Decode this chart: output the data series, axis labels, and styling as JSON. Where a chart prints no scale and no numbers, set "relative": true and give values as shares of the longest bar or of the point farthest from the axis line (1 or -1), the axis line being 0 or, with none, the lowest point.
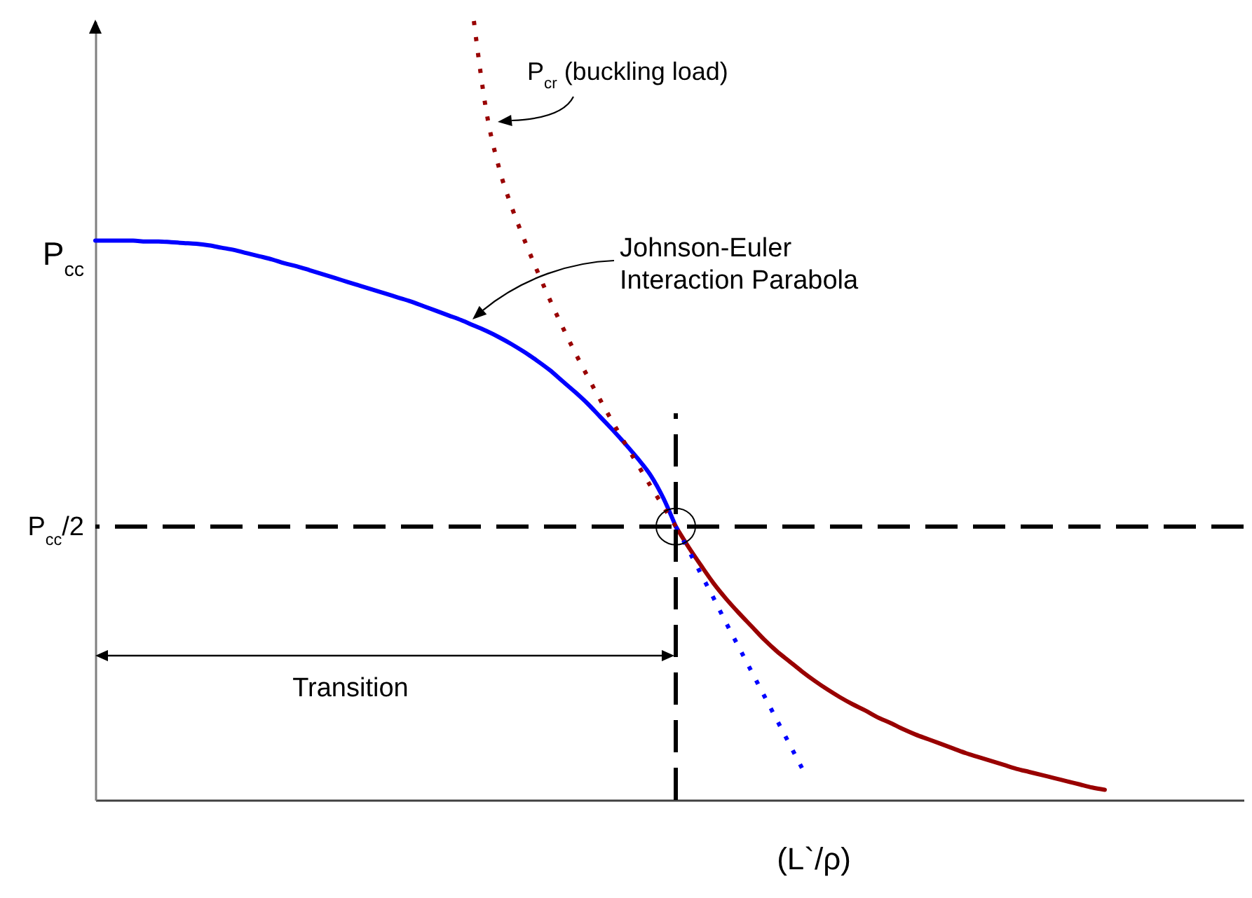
{
  "chart_data": {
    "type": "line",
    "relative": true,
    "xlabel": "(L`/ρ)",
    "categories": [
      null,
      null,
      null,
      null,
      null,
      null,
      null,
      null,
      null,
      null,
      null,
      null,
      null,
      null,
      null,
      null,
      null,
      null,
      null,
      null,
      null,
      null,
      null,
      null,
      null,
      null,
      null,
      null,
      null,
      null,
      null,
      null,
      null,
      null,
      null,
      null,
      null,
      null,
      null,
      null,
      null,
      null,
      null,
      null,
      null,
      null,
      null,
      null,
      null,
      null,
      null,
      null,
      null,
      null,
      null,
      null,
      null,
      null,
      null,
      null,
      null,
      null,
      null,
      null,
      null,
      null,
      null,
      null,
      null,
      null,
      null,
      null,
      null,
      null,
      null,
      null,
      null,
      null,
      null,
      null,
      null,
      null,
      null,
      null,
      null,
      null,
      null,
      null,
      null,
      null,
      null,
      null
    ],
    "series": [
      {
        "color": "#0000ff",
        "line_style": "solid",
        "values": [
          0.718,
          0.718,
          0.718,
          0.718,
          0.717,
          0.717,
          0.716,
          0.715,
          0.714,
          0.712,
          0.709,
          0.706,
          0.702,
          0.698,
          0.694,
          0.689,
          0.685,
          0.68,
          0.675,
          0.67,
          0.665,
          0.66,
          0.655,
          0.65,
          0.645,
          0.64,
          0.634,
          0.628,
          0.622,
          0.616,
          0.609,
          0.602,
          0.594,
          0.585,
          0.575,
          0.564,
          0.552,
          0.538,
          0.524,
          0.509,
          0.492,
          0.475,
          0.457,
          0.438,
          0.417,
          0.388,
          0.351,
          null,
          null,
          null,
          null,
          null,
          null,
          null,
          null,
          null,
          null,
          null,
          null,
          null,
          null,
          null,
          null,
          null,
          null,
          null,
          null,
          null,
          null,
          null,
          null,
          null,
          null,
          null,
          null,
          null,
          null,
          null,
          null,
          null,
          null,
          null,
          null,
          null,
          null,
          null,
          null,
          null,
          null,
          null,
          null,
          null
        ]
      },
      {
        "color": "#990000",
        "line_style": "dotted",
        "values": [
          null,
          null,
          null,
          null,
          null,
          null,
          null,
          null,
          null,
          null,
          null,
          null,
          null,
          null,
          null,
          null,
          null,
          null,
          null,
          null,
          null,
          null,
          null,
          null,
          null,
          null,
          null,
          null,
          null,
          null,
          1,
          0.883,
          0.811,
          0.761,
          0.719,
          0.68,
          0.643,
          0.608,
          0.575,
          0.544,
          0.514,
          0.485,
          0.457,
          0.43,
          0.403,
          0.377,
          0.351,
          null,
          null,
          null,
          null,
          null,
          null,
          null,
          null,
          null,
          null,
          null,
          null,
          null,
          null,
          null,
          null,
          null,
          null,
          null,
          null,
          null,
          null,
          null,
          null,
          null,
          null,
          null,
          null,
          null,
          null,
          null,
          null,
          null,
          null,
          null,
          null,
          null,
          null,
          null,
          null,
          null,
          null,
          null,
          null,
          null
        ]
      },
      {
        "color": "#990000",
        "line_style": "solid",
        "values": [
          null,
          null,
          null,
          null,
          null,
          null,
          null,
          null,
          null,
          null,
          null,
          null,
          null,
          null,
          null,
          null,
          null,
          null,
          null,
          null,
          null,
          null,
          null,
          null,
          null,
          null,
          null,
          null,
          null,
          null,
          null,
          null,
          null,
          null,
          null,
          null,
          null,
          null,
          null,
          null,
          null,
          null,
          null,
          null,
          null,
          null,
          0.351,
          0.325,
          0.301,
          0.278,
          0.258,
          0.24,
          0.223,
          0.206,
          0.191,
          0.178,
          0.165,
          0.153,
          0.142,
          0.132,
          0.123,
          0.115,
          0.106,
          0.099,
          0.091,
          0.084,
          0.078,
          0.072,
          0.066,
          0.06,
          0.055,
          0.05,
          0.045,
          0.04,
          0.036,
          0.032,
          0.028,
          0.024,
          0.02,
          0.016,
          0.013,
          null,
          null,
          null,
          null,
          null,
          null,
          null,
          null,
          null,
          null,
          null
        ]
      },
      {
        "color": "#0000ff",
        "line_style": "dotted",
        "values": [
          null,
          null,
          null,
          null,
          null,
          null,
          null,
          null,
          null,
          null,
          null,
          null,
          null,
          null,
          null,
          null,
          null,
          null,
          null,
          null,
          null,
          null,
          null,
          null,
          null,
          null,
          null,
          null,
          null,
          null,
          null,
          null,
          null,
          null,
          null,
          null,
          null,
          null,
          null,
          null,
          null,
          null,
          null,
          null,
          null,
          null,
          0.351,
          0.321,
          0.29,
          0.259,
          0.227,
          0.196,
          0.165,
          0.134,
          0.103,
          0.072,
          0.041,
          null,
          null,
          null,
          null,
          null,
          null,
          null,
          null,
          null,
          null,
          null,
          null,
          null,
          null,
          null,
          null,
          null,
          null,
          null,
          null,
          null,
          null,
          null,
          null,
          null,
          null,
          null,
          null,
          null,
          null,
          null,
          null,
          null,
          null,
          null
        ]
      }
    ],
    "ref_lines": [
      {
        "axis": "y",
        "value": 0.351,
        "label": "P$_{cc}$/2",
        "color": "#000000",
        "line_style": "dashed"
      }
    ],
    "annotations": [
      "P$_{cc}$",
      "P$_{cr}$ (buckling load)",
      "Johnson-Euler\nInteraction Parabola",
      "Transition"
    ]
  }
}
